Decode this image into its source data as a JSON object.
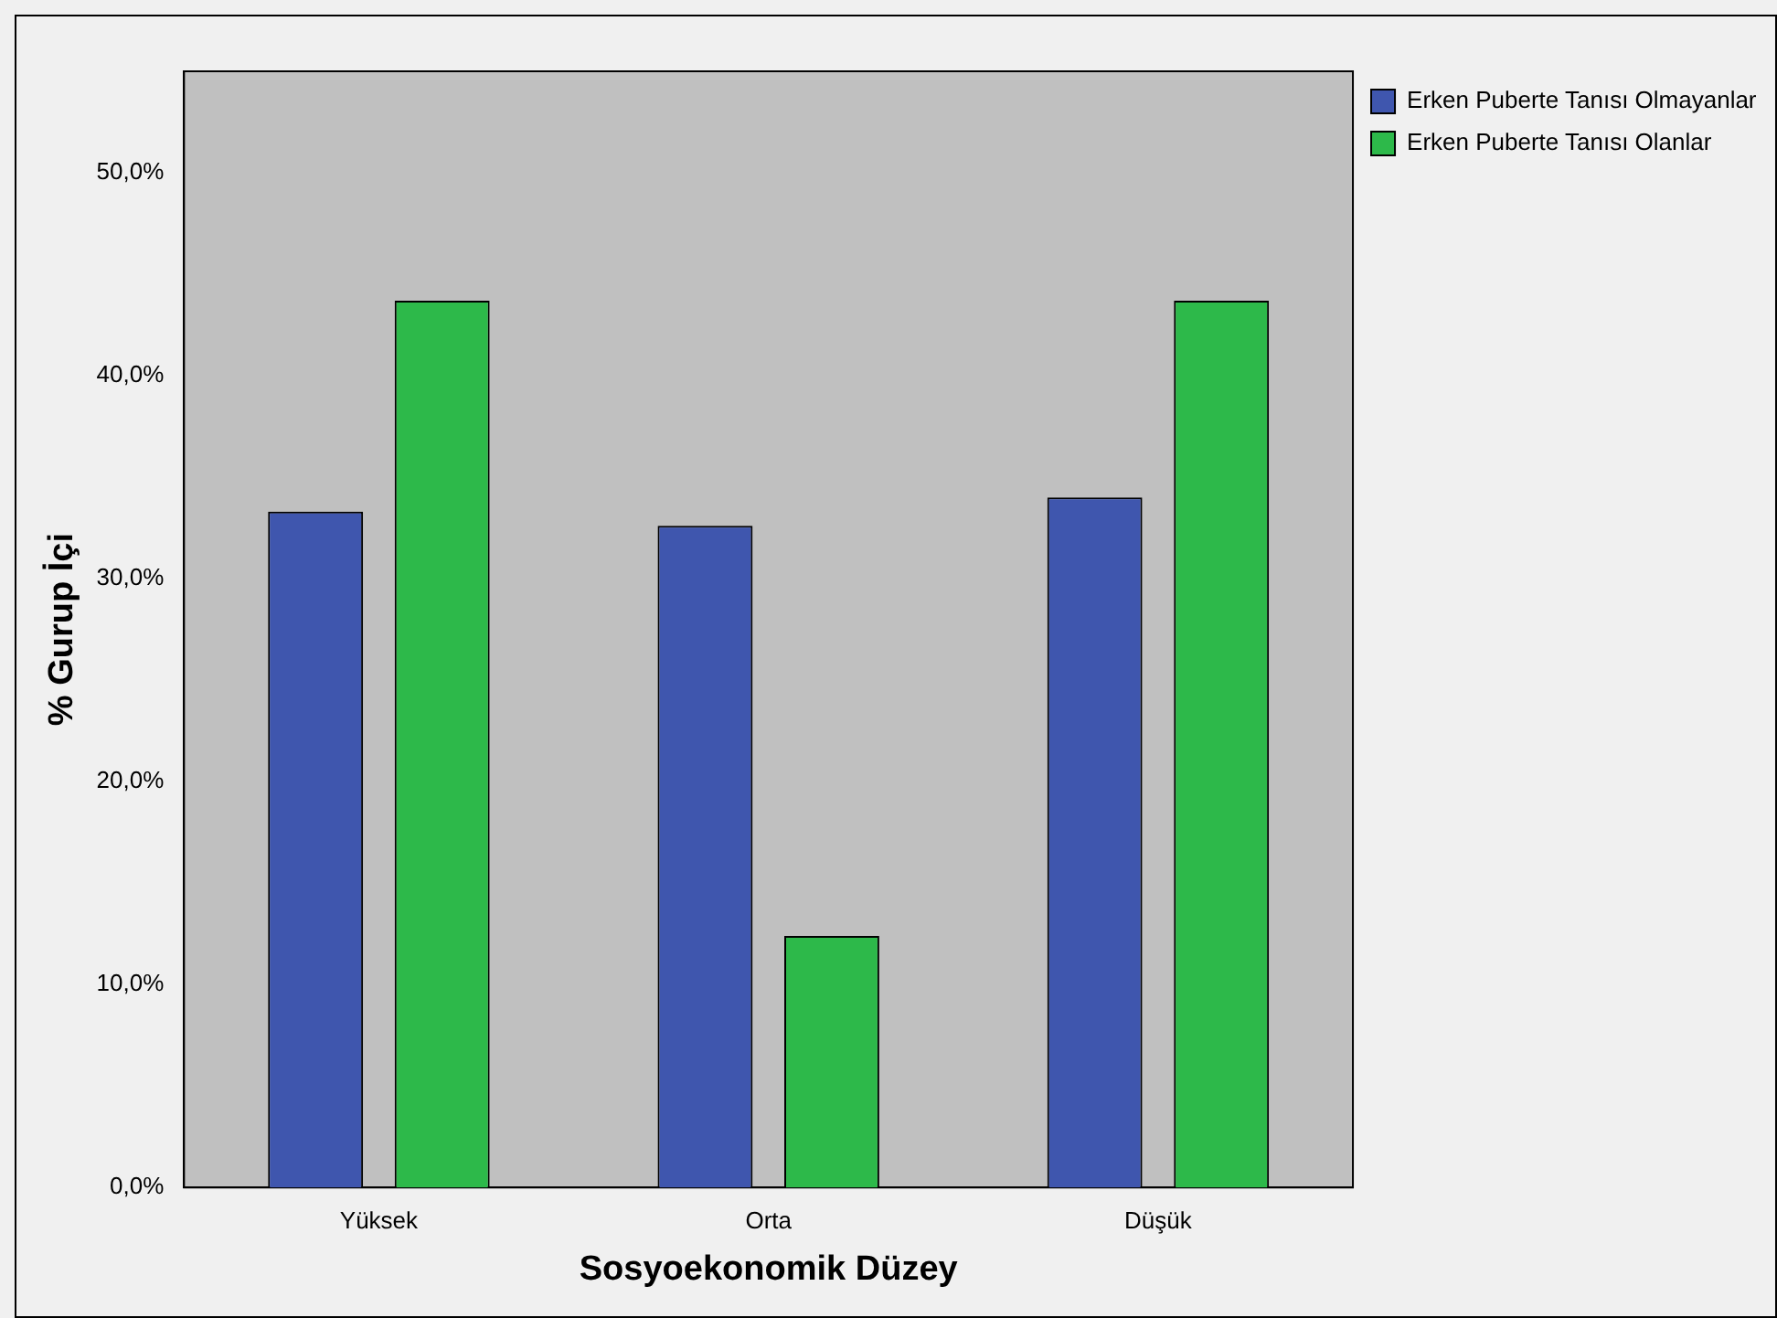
{
  "chart_data": {
    "type": "bar",
    "xlabel": "Sosyoekonomik Düzey",
    "ylabel": "% Gurup İçi",
    "categories": [
      "Yüksek",
      "Orta",
      "Düşük"
    ],
    "series": [
      {
        "name": "Erken Puberte Tanısı Olmayanlar",
        "color": "#3f56ae",
        "values": [
          33.3,
          32.6,
          34.0
        ]
      },
      {
        "name": "Erken Puberte Tanısı Olanlar",
        "color": "#2db94a",
        "values": [
          43.7,
          12.4,
          43.7
        ]
      }
    ],
    "ylim": [
      0,
      55
    ],
    "yticks": [
      {
        "value": 0,
        "label": "0,0%"
      },
      {
        "value": 10,
        "label": "10,0%"
      },
      {
        "value": 20,
        "label": "20,0%"
      },
      {
        "value": 30,
        "label": "30,0%"
      },
      {
        "value": 40,
        "label": "40,0%"
      },
      {
        "value": 50,
        "label": "50,0%"
      }
    ],
    "grid": false,
    "legend": "top right"
  }
}
